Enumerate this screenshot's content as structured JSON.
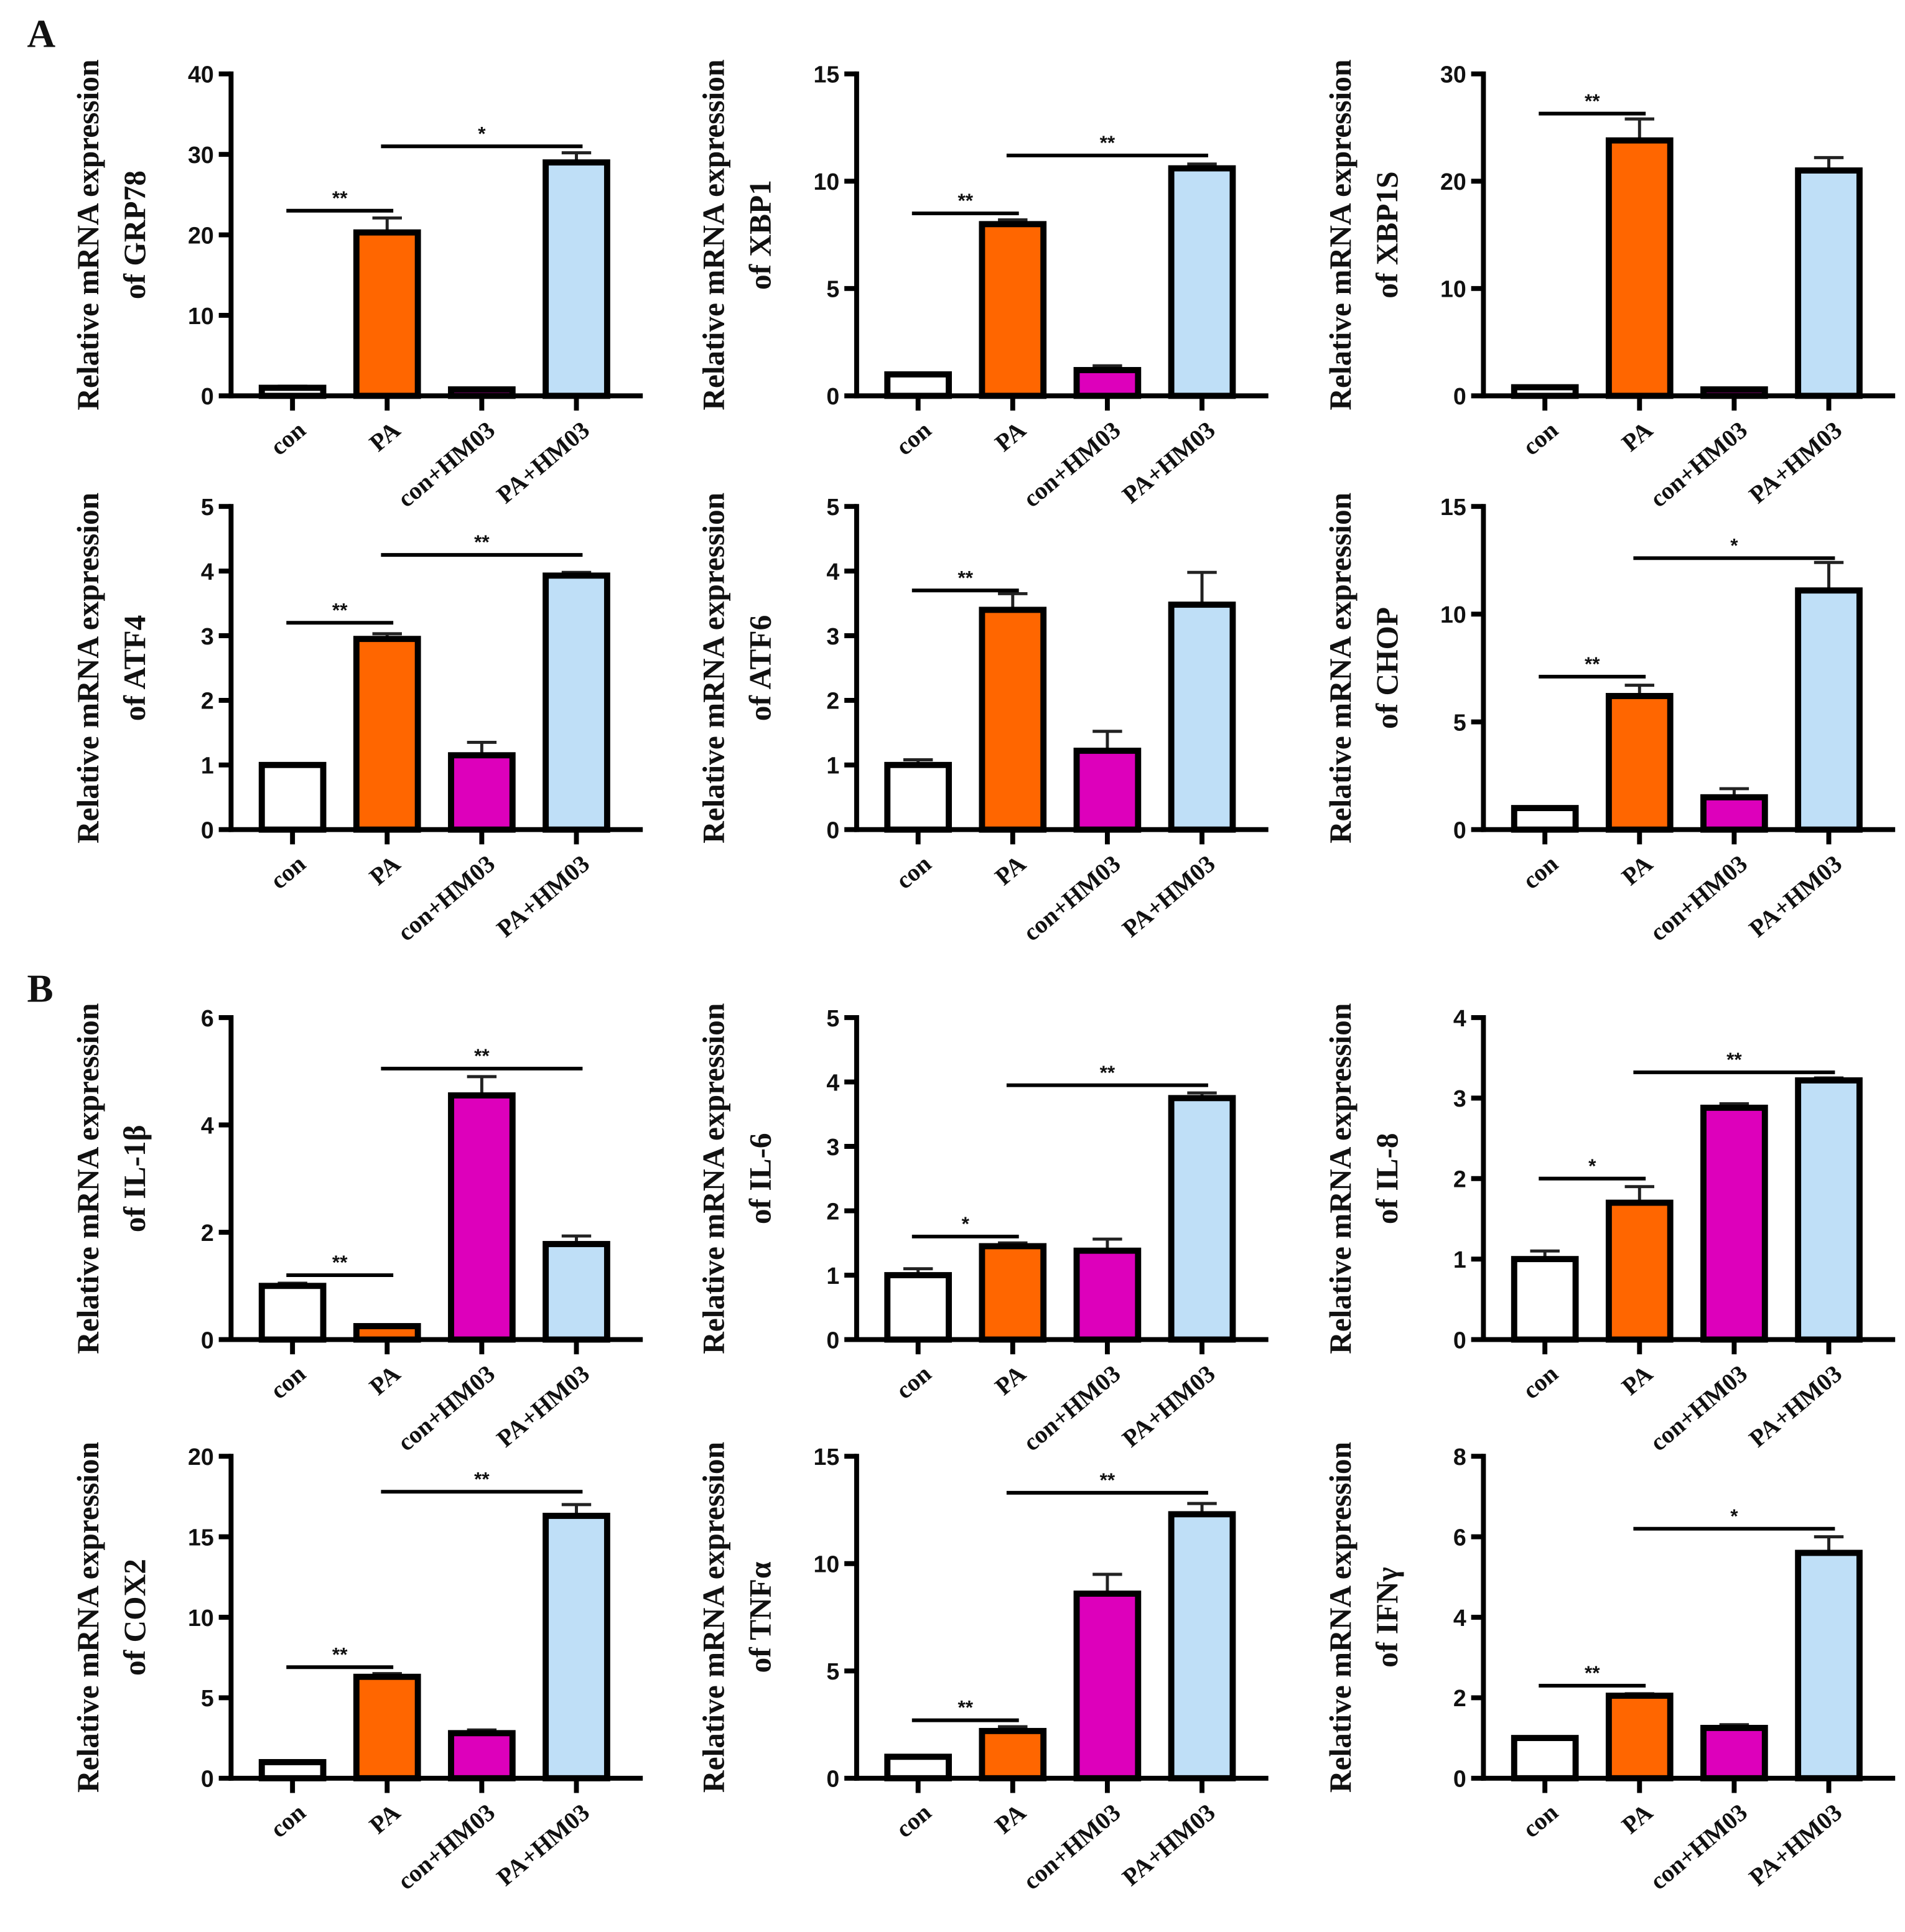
{
  "panel_labels": [
    "A",
    "B"
  ],
  "colors": {
    "con": "#ffffff",
    "PA": "#ff6600",
    "con+HM03": "#dd00bb",
    "PA+HM03": "#bfdff7"
  },
  "chart_data": [
    {
      "type": "bar",
      "panel": "A",
      "ylabel": [
        "Relative mRNA expression",
        "of GRP78"
      ],
      "categories": [
        "con",
        "PA",
        "con+HM03",
        "PA+HM03"
      ],
      "values": [
        1,
        20.3,
        0.8,
        29
      ],
      "errors": [
        0.2,
        1.8,
        0.1,
        1.2
      ],
      "ylim": [
        0,
        40
      ],
      "yticks": [
        "0",
        "10",
        "20",
        "30",
        "40"
      ],
      "significance": [
        {
          "from": 0,
          "to": 1,
          "label": "**",
          "level": 23
        },
        {
          "from": 1,
          "to": 3,
          "label": "*",
          "level": 31
        }
      ]
    },
    {
      "type": "bar",
      "panel": "A",
      "ylabel": [
        "Relative mRNA expression",
        "of XBP1"
      ],
      "categories": [
        "con",
        "PA",
        "con+HM03",
        "PA+HM03"
      ],
      "values": [
        1,
        8,
        1.2,
        10.6
      ],
      "errors": [
        0.05,
        0.2,
        0.2,
        0.2
      ],
      "ylim": [
        0,
        15
      ],
      "yticks": [
        "0",
        "5",
        "10",
        "15"
      ],
      "significance": [
        {
          "from": 0,
          "to": 1,
          "label": "**",
          "level": 8.5
        },
        {
          "from": 1,
          "to": 3,
          "label": "**",
          "level": 11.2
        }
      ]
    },
    {
      "type": "bar",
      "panel": "A",
      "ylabel": [
        "Relative mRNA expression",
        "of XBP1S"
      ],
      "categories": [
        "con",
        "PA",
        "con+HM03",
        "PA+HM03"
      ],
      "values": [
        0.8,
        23.8,
        0.6,
        21
      ],
      "errors": [
        0.1,
        2,
        0.1,
        1.2
      ],
      "ylim": [
        0,
        30
      ],
      "yticks": [
        "0",
        "10",
        "20",
        "30"
      ],
      "significance": [
        {
          "from": 0,
          "to": 1,
          "label": "**",
          "level": 26.3
        }
      ]
    },
    {
      "type": "bar",
      "panel": "A",
      "ylabel": [
        "Relative mRNA expression",
        "of ATF4"
      ],
      "categories": [
        "con",
        "PA",
        "con+HM03",
        "PA+HM03"
      ],
      "values": [
        1,
        2.95,
        1.15,
        3.93
      ],
      "errors": [
        0.02,
        0.08,
        0.2,
        0.05
      ],
      "ylim": [
        0,
        5
      ],
      "yticks": [
        "0",
        "1",
        "2",
        "3",
        "4",
        "5"
      ],
      "significance": [
        {
          "from": 0,
          "to": 1,
          "label": "**",
          "level": 3.2
        },
        {
          "from": 1,
          "to": 3,
          "label": "**",
          "level": 4.25
        }
      ]
    },
    {
      "type": "bar",
      "panel": "A",
      "ylabel": [
        "Relative mRNA expression",
        "of ATF6"
      ],
      "categories": [
        "con",
        "PA",
        "con+HM03",
        "PA+HM03"
      ],
      "values": [
        1,
        3.4,
        1.22,
        3.48
      ],
      "errors": [
        0.08,
        0.25,
        0.3,
        0.5
      ],
      "ylim": [
        0,
        5
      ],
      "yticks": [
        "0",
        "1",
        "2",
        "3",
        "4",
        "5"
      ],
      "significance": [
        {
          "from": 0,
          "to": 1,
          "label": "**",
          "level": 3.7
        }
      ]
    },
    {
      "type": "bar",
      "panel": "A",
      "ylabel": [
        "Relative mRNA expression",
        "of CHOP"
      ],
      "categories": [
        "con",
        "PA",
        "con+HM03",
        "PA+HM03"
      ],
      "values": [
        1,
        6.2,
        1.5,
        11.1
      ],
      "errors": [
        0.05,
        0.5,
        0.4,
        1.3
      ],
      "ylim": [
        0,
        15
      ],
      "yticks": [
        "0",
        "5",
        "10",
        "15"
      ],
      "significance": [
        {
          "from": 0,
          "to": 1,
          "label": "**",
          "level": 7.1
        },
        {
          "from": 1,
          "to": 3,
          "label": "*",
          "level": 12.6
        }
      ]
    },
    {
      "type": "bar",
      "panel": "B",
      "ylabel": [
        "Relative mRNA expression",
        "of IL-1β"
      ],
      "categories": [
        "con",
        "PA",
        "con+HM03",
        "PA+HM03"
      ],
      "values": [
        1,
        0.25,
        4.55,
        1.78
      ],
      "errors": [
        0.05,
        0.02,
        0.35,
        0.15
      ],
      "ylim": [
        0,
        6
      ],
      "yticks": [
        "0",
        "2",
        "4",
        "6"
      ],
      "significance": [
        {
          "from": 0,
          "to": 1,
          "label": "**",
          "level": 1.2
        },
        {
          "from": 1,
          "to": 3,
          "label": "**",
          "level": 5.05
        }
      ]
    },
    {
      "type": "bar",
      "panel": "B",
      "ylabel": [
        "Relative mRNA expression",
        "of IL-6"
      ],
      "categories": [
        "con",
        "PA",
        "con+HM03",
        "PA+HM03"
      ],
      "values": [
        1,
        1.45,
        1.38,
        3.75
      ],
      "errors": [
        0.1,
        0.05,
        0.18,
        0.08
      ],
      "ylim": [
        0,
        5
      ],
      "yticks": [
        "0",
        "1",
        "2",
        "3",
        "4",
        "5"
      ],
      "significance": [
        {
          "from": 0,
          "to": 1,
          "label": "*",
          "level": 1.6
        },
        {
          "from": 1,
          "to": 3,
          "label": "**",
          "level": 3.95
        }
      ]
    },
    {
      "type": "bar",
      "panel": "B",
      "ylabel": [
        "Relative mRNA expression",
        "of IL-8"
      ],
      "categories": [
        "con",
        "PA",
        "con+HM03",
        "PA+HM03"
      ],
      "values": [
        1,
        1.7,
        2.88,
        3.22
      ],
      "errors": [
        0.1,
        0.2,
        0.05,
        0.03
      ],
      "ylim": [
        0,
        4
      ],
      "yticks": [
        "0",
        "1",
        "2",
        "3",
        "4"
      ],
      "significance": [
        {
          "from": 0,
          "to": 1,
          "label": "*",
          "level": 2.0
        },
        {
          "from": 1,
          "to": 3,
          "label": "**",
          "level": 3.32
        }
      ]
    },
    {
      "type": "bar",
      "panel": "B",
      "ylabel": [
        "Relative mRNA expression",
        "of COX2"
      ],
      "categories": [
        "con",
        "PA",
        "con+HM03",
        "PA+HM03"
      ],
      "values": [
        1,
        6.3,
        2.8,
        16.3
      ],
      "errors": [
        0.05,
        0.2,
        0.2,
        0.7
      ],
      "ylim": [
        0,
        20
      ],
      "yticks": [
        "0",
        "5",
        "10",
        "15",
        "20"
      ],
      "significance": [
        {
          "from": 0,
          "to": 1,
          "label": "**",
          "level": 6.9
        },
        {
          "from": 1,
          "to": 3,
          "label": "**",
          "level": 17.8
        }
      ]
    },
    {
      "type": "bar",
      "panel": "B",
      "ylabel": [
        "Relative mRNA expression",
        "of TNFα"
      ],
      "categories": [
        "con",
        "PA",
        "con+HM03",
        "PA+HM03"
      ],
      "values": [
        1,
        2.2,
        8.6,
        12.3
      ],
      "errors": [
        0.05,
        0.2,
        0.9,
        0.5
      ],
      "ylim": [
        0,
        15
      ],
      "yticks": [
        "0",
        "5",
        "10",
        "15"
      ],
      "significance": [
        {
          "from": 0,
          "to": 1,
          "label": "**",
          "level": 2.7
        },
        {
          "from": 1,
          "to": 3,
          "label": "**",
          "level": 13.3
        }
      ]
    },
    {
      "type": "bar",
      "panel": "B",
      "ylabel": [
        "Relative mRNA expression",
        "of IFNγ"
      ],
      "categories": [
        "con",
        "PA",
        "con+HM03",
        "PA+HM03"
      ],
      "values": [
        1,
        2.05,
        1.25,
        5.6
      ],
      "errors": [
        0.03,
        0.05,
        0.08,
        0.4
      ],
      "ylim": [
        0,
        8
      ],
      "yticks": [
        "0",
        "2",
        "4",
        "6",
        "8"
      ],
      "significance": [
        {
          "from": 0,
          "to": 1,
          "label": "**",
          "level": 2.3
        },
        {
          "from": 1,
          "to": 3,
          "label": "*",
          "level": 6.2
        }
      ]
    }
  ]
}
